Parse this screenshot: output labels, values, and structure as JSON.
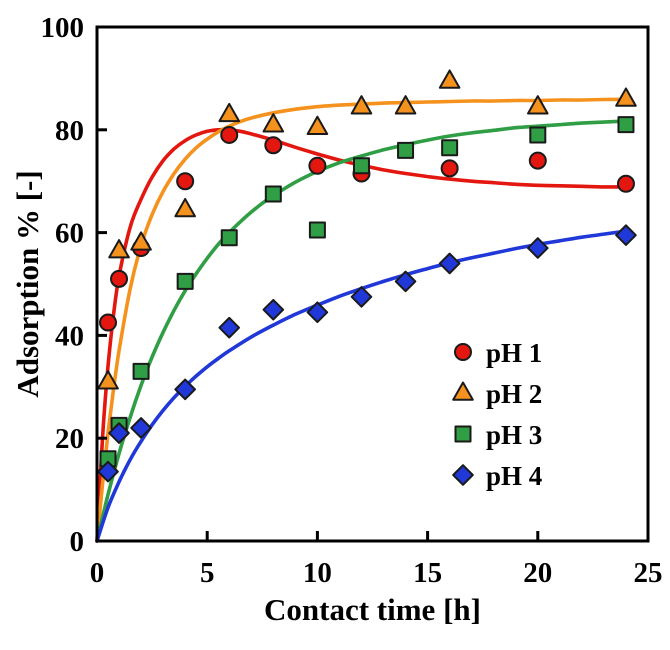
{
  "chart_data": {
    "type": "scatter",
    "title": "",
    "xlabel": "Contact time [h]",
    "ylabel": "Adsorption % [-]",
    "xlim": [
      0,
      25
    ],
    "ylim": [
      0,
      100
    ],
    "xticks": [
      0,
      5,
      10,
      15,
      20,
      25
    ],
    "yticks": [
      0,
      20,
      40,
      60,
      80,
      100
    ],
    "grid": false,
    "frame_color": "#000000",
    "background": "#ffffff",
    "legend": {
      "position": "inside-lower-right",
      "labels": [
        "pH 1",
        "pH 2",
        "pH 3",
        "pH 4"
      ]
    },
    "series": [
      {
        "name": "pH 1",
        "marker": "circle",
        "color": "#e3170f",
        "edge_color": "#1a1a1a",
        "points": [
          [
            0.5,
            42.5
          ],
          [
            1,
            51
          ],
          [
            2,
            57
          ],
          [
            4,
            70
          ],
          [
            6,
            79
          ],
          [
            8,
            77
          ],
          [
            10,
            73
          ],
          [
            12,
            71.5
          ],
          [
            16,
            72.5
          ],
          [
            20,
            74
          ],
          [
            24,
            69.5
          ]
        ],
        "fit_curve": [
          [
            0,
            0
          ],
          [
            0.25,
            20
          ],
          [
            0.5,
            34
          ],
          [
            0.75,
            44
          ],
          [
            1,
            51.5
          ],
          [
            1.5,
            61
          ],
          [
            2,
            66.5
          ],
          [
            2.5,
            70.8
          ],
          [
            3,
            74
          ],
          [
            3.5,
            76.3
          ],
          [
            4,
            77.9
          ],
          [
            4.5,
            79
          ],
          [
            5,
            79.7
          ],
          [
            5.5,
            80
          ],
          [
            6,
            80
          ],
          [
            6.5,
            79.7
          ],
          [
            7,
            79.2
          ],
          [
            8,
            78
          ],
          [
            9,
            76.6
          ],
          [
            10,
            75.3
          ],
          [
            11,
            74.1
          ],
          [
            12,
            73.1
          ],
          [
            13,
            72.2
          ],
          [
            14,
            71.5
          ],
          [
            15,
            70.9
          ],
          [
            16,
            70.4
          ],
          [
            17,
            70
          ],
          [
            18,
            69.7
          ],
          [
            19,
            69.4
          ],
          [
            20,
            69.2
          ],
          [
            21,
            69.1
          ],
          [
            22,
            69
          ],
          [
            23,
            68.9
          ],
          [
            24,
            68.9
          ]
        ]
      },
      {
        "name": "pH 2",
        "marker": "triangle",
        "color": "#f5921e",
        "edge_color": "#1a1a1a",
        "points": [
          [
            0.5,
            31
          ],
          [
            1,
            56.5
          ],
          [
            2,
            58
          ],
          [
            4,
            64.5
          ],
          [
            6,
            83
          ],
          [
            8,
            81
          ],
          [
            10,
            80.5
          ],
          [
            12,
            84.5
          ],
          [
            14,
            84.5
          ],
          [
            16,
            89.5
          ],
          [
            20,
            84.5
          ],
          [
            24,
            86
          ]
        ],
        "fit_curve": [
          [
            0,
            0
          ],
          [
            0.25,
            11
          ],
          [
            0.5,
            21
          ],
          [
            0.75,
            29.5
          ],
          [
            1,
            37
          ],
          [
            1.5,
            49
          ],
          [
            2,
            57.5
          ],
          [
            2.5,
            63.5
          ],
          [
            3,
            68
          ],
          [
            3.5,
            71.5
          ],
          [
            4,
            74.3
          ],
          [
            4.5,
            76.5
          ],
          [
            5,
            78.2
          ],
          [
            5.5,
            79.6
          ],
          [
            6,
            80.7
          ],
          [
            6.5,
            81.6
          ],
          [
            7,
            82.3
          ],
          [
            8,
            83.3
          ],
          [
            9,
            84
          ],
          [
            10,
            84.5
          ],
          [
            11,
            84.8
          ],
          [
            12,
            85
          ],
          [
            13,
            85.2
          ],
          [
            14,
            85.3
          ],
          [
            15,
            85.4
          ],
          [
            16,
            85.5
          ],
          [
            17,
            85.6
          ],
          [
            18,
            85.6
          ],
          [
            19,
            85.7
          ],
          [
            20,
            85.7
          ],
          [
            21,
            85.8
          ],
          [
            22,
            85.8
          ],
          [
            23,
            85.9
          ],
          [
            24,
            85.9
          ]
        ]
      },
      {
        "name": "pH 3",
        "marker": "square",
        "color": "#2f9e44",
        "edge_color": "#1a1a1a",
        "points": [
          [
            0.5,
            16
          ],
          [
            1,
            22.5
          ],
          [
            2,
            33
          ],
          [
            4,
            50.5
          ],
          [
            6,
            59
          ],
          [
            8,
            67.5
          ],
          [
            10,
            60.5
          ],
          [
            12,
            73
          ],
          [
            14,
            76
          ],
          [
            16,
            76.5
          ],
          [
            20,
            79
          ],
          [
            24,
            81
          ]
        ],
        "fit_curve": [
          [
            0,
            0
          ],
          [
            0.5,
            9
          ],
          [
            1,
            17
          ],
          [
            1.5,
            24
          ],
          [
            2,
            30.3
          ],
          [
            2.5,
            35.8
          ],
          [
            3,
            40.6
          ],
          [
            3.5,
            44.9
          ],
          [
            4,
            48.7
          ],
          [
            4.5,
            52
          ],
          [
            5,
            55
          ],
          [
            5.5,
            57.7
          ],
          [
            6,
            60
          ],
          [
            6.5,
            62.1
          ],
          [
            7,
            64
          ],
          [
            7.5,
            65.7
          ],
          [
            8,
            67.2
          ],
          [
            9,
            69.8
          ],
          [
            10,
            71.9
          ],
          [
            11,
            73.6
          ],
          [
            12,
            74.9
          ],
          [
            13,
            76.1
          ],
          [
            14,
            77.1
          ],
          [
            15,
            78
          ],
          [
            16,
            78.8
          ],
          [
            17,
            79.4
          ],
          [
            18,
            79.9
          ],
          [
            19,
            80.4
          ],
          [
            20,
            80.7
          ],
          [
            21,
            81
          ],
          [
            22,
            81.3
          ],
          [
            23,
            81.5
          ],
          [
            24,
            81.7
          ]
        ]
      },
      {
        "name": "pH 4",
        "marker": "diamond",
        "color": "#2038d8",
        "edge_color": "#1a1a1a",
        "points": [
          [
            0.5,
            13.5
          ],
          [
            1,
            21
          ],
          [
            2,
            22
          ],
          [
            4,
            29.5
          ],
          [
            6,
            41.5
          ],
          [
            8,
            45
          ],
          [
            10,
            44.5
          ],
          [
            12,
            47.5
          ],
          [
            14,
            50.5
          ],
          [
            16,
            54
          ],
          [
            20,
            57
          ],
          [
            24,
            59.5
          ]
        ],
        "fit_curve": [
          [
            0,
            0
          ],
          [
            0.5,
            6.5
          ],
          [
            1,
            11.5
          ],
          [
            1.5,
            15.8
          ],
          [
            2,
            19.4
          ],
          [
            2.5,
            22.6
          ],
          [
            3,
            25.4
          ],
          [
            3.5,
            27.9
          ],
          [
            4,
            30.1
          ],
          [
            4.5,
            32.1
          ],
          [
            5,
            33.9
          ],
          [
            5.5,
            35.5
          ],
          [
            6,
            37
          ],
          [
            7,
            39.7
          ],
          [
            8,
            42
          ],
          [
            9,
            44.1
          ],
          [
            10,
            45.9
          ],
          [
            11,
            47.6
          ],
          [
            12,
            49.1
          ],
          [
            13,
            50.5
          ],
          [
            14,
            51.8
          ],
          [
            15,
            53
          ],
          [
            16,
            54.1
          ],
          [
            17,
            55.1
          ],
          [
            18,
            56
          ],
          [
            19,
            56.9
          ],
          [
            20,
            57.7
          ],
          [
            21,
            58.4
          ],
          [
            22,
            59.1
          ],
          [
            23,
            59.7
          ],
          [
            24,
            60.3
          ]
        ]
      }
    ]
  }
}
